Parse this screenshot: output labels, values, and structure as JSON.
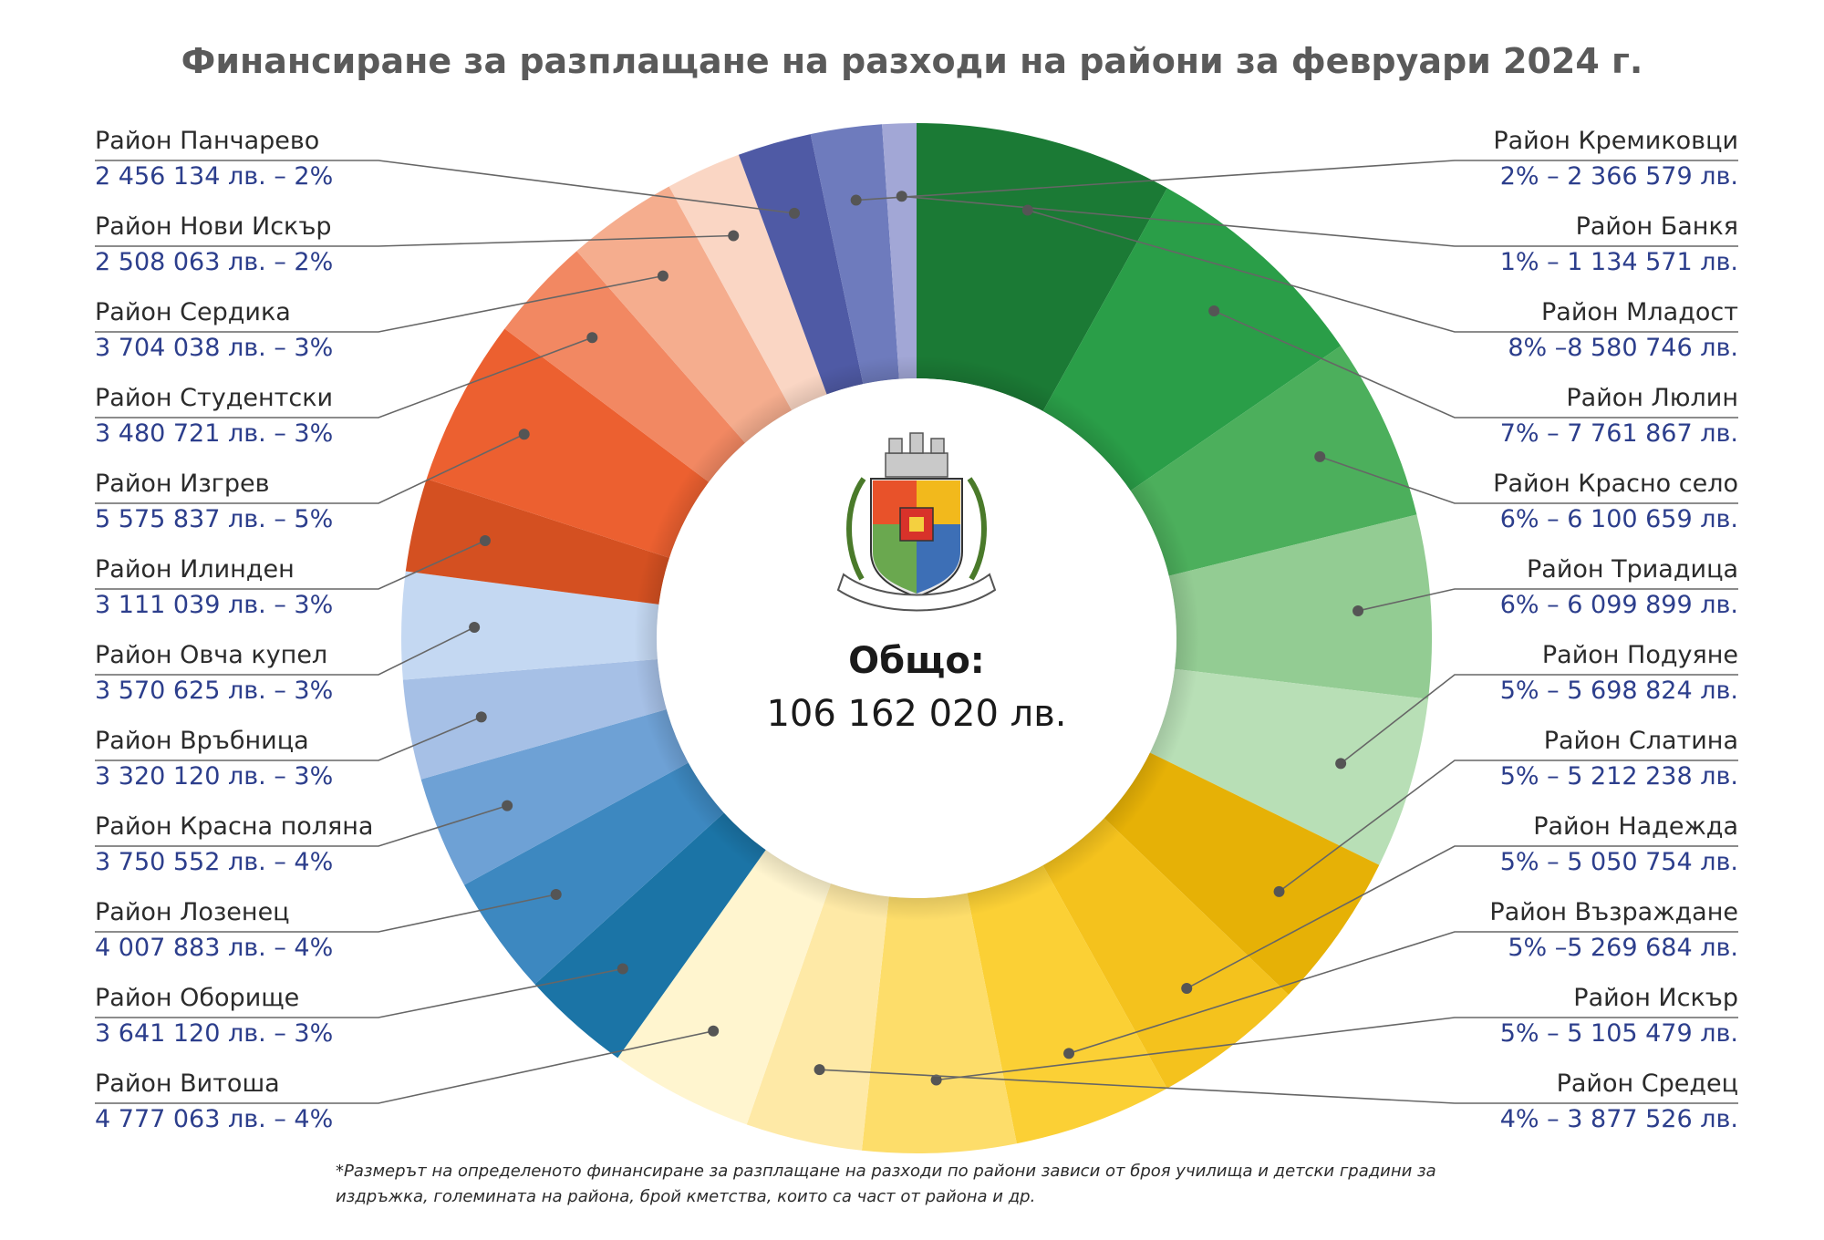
{
  "chart_data": {
    "type": "pie",
    "title": "Финансиране за разплащане на разходи на райони за февруари 2024 г.",
    "center_label": "Общо:",
    "center_value": "106 162 020 лв.",
    "footnote": [
      "*Размерът на определеното финансиране за разплащане на разходи по райони зависи от броя училища и детски градини за",
      "издръжка, големината на района, брой кметства, които са част от района и др."
    ],
    "slices": [
      {
        "name": "Район Младост",
        "value": 8580746,
        "label": "8% –8 580 746 лв.",
        "color": "#1b7a35"
      },
      {
        "name": "Район Люлин",
        "value": 7761867,
        "label": "7% – 7 761 867 лв.",
        "color": "#2a9e48"
      },
      {
        "name": "Район Красно село",
        "value": 6100659,
        "label": "6% – 6 100 659 лв.",
        "color": "#4caf5c"
      },
      {
        "name": "Район Триадица",
        "value": 6099899,
        "label": "6% – 6 099 899 лв.",
        "color": "#93cc93"
      },
      {
        "name": "Район Подуяне",
        "value": 5698824,
        "label": "5% – 5 698 824 лв.",
        "color": "#b8dfb6"
      },
      {
        "name": "Район Слатина",
        "value": 5212238,
        "label": "5% – 5 212 238 лв.",
        "color": "#e6b106"
      },
      {
        "name": "Район Надежда",
        "value": 5050754,
        "label": "5% – 5 050 754 лв.",
        "color": "#f4c21d"
      },
      {
        "name": "Район Възраждане",
        "value": 5269684,
        "label": "5% –5 269 684 лв.",
        "color": "#fbd035"
      },
      {
        "name": "Район Искър",
        "value": 5105479,
        "label": "5% – 5 105 479 лв.",
        "color": "#fddd6a"
      },
      {
        "name": "Район Средец",
        "value": 3877526,
        "label": "4% – 3 877 526 лв.",
        "color": "#fee9a6"
      },
      {
        "name": "Район Витоша",
        "value": 4777063,
        "label": "4 777 063 лв. – 4%",
        "color": "#fff5cf"
      },
      {
        "name": "Район Оборище",
        "value": 3641120,
        "label": "3 641 120 лв. – 3%",
        "color": "#1b74a6"
      },
      {
        "name": "Район Лозенец",
        "value": 4007883,
        "label": "4 007 883 лв. – 4%",
        "color": "#3d88c0"
      },
      {
        "name": "Район Красна поляна",
        "value": 3750552,
        "label": "3 750 552 лв. – 4%",
        "color": "#6ea1d5"
      },
      {
        "name": "Район Връбница",
        "value": 3320120,
        "label": "3 320 120 лв. – 3%",
        "color": "#a6c0e6"
      },
      {
        "name": "Район Овча купел",
        "value": 3570625,
        "label": "3 570 625 лв. – 3%",
        "color": "#c4d8f2"
      },
      {
        "name": "Район Илинден",
        "value": 3111039,
        "label": "3 111 039 лв. – 3%",
        "color": "#d45021"
      },
      {
        "name": "Район Изгрев",
        "value": 5575837,
        "label": "5 575 837 лв. – 5%",
        "color": "#ec6030"
      },
      {
        "name": "Район Студентски",
        "value": 3480721,
        "label": "3 480 721 лв. – 3%",
        "color": "#f28862"
      },
      {
        "name": "Район Сердика",
        "value": 3704038,
        "label": "3 704 038 лв. – 3%",
        "color": "#f5ad8e"
      },
      {
        "name": "Район Нови Искър",
        "value": 2508063,
        "label": "2 508 063 лв. – 2%",
        "color": "#fad6c4"
      },
      {
        "name": "Район Панчарево",
        "value": 2456134,
        "label": "2 456 134 лв. – 2%",
        "color": "#4f5aa5"
      },
      {
        "name": "Район Кремиковци",
        "value": 2366579,
        "label": "2% – 2 366 579 лв.",
        "color": "#6e7bbd"
      },
      {
        "name": "Район Банкя",
        "value": 1134571,
        "label": "1% – 1 134 571 лв.",
        "color": "#a2a7d6"
      }
    ],
    "right_labels": [
      {
        "name": "Район Кремиковци",
        "label": "2% – 2 366 579 лв."
      },
      {
        "name": "Район Банкя",
        "label": "1% – 1 134 571 лв."
      },
      {
        "name": "Район Младост",
        "label": "8% –8 580 746 лв."
      },
      {
        "name": "Район Люлин",
        "label": "7% – 7 761 867 лв."
      },
      {
        "name": "Район Красно село",
        "label": "6% – 6 100 659 лв."
      },
      {
        "name": "Район Триадица",
        "label": "6% – 6 099 899 лв."
      },
      {
        "name": "Район Подуяне",
        "label": "5% – 5 698 824 лв."
      },
      {
        "name": "Район Слатина",
        "label": "5% – 5 212 238 лв."
      },
      {
        "name": "Район Надежда",
        "label": "5% – 5 050 754 лв."
      },
      {
        "name": "Район Възраждане",
        "label": "5% –5 269 684 лв."
      },
      {
        "name": "Район Искър",
        "label": "5% – 5 105 479 лв."
      },
      {
        "name": "Район Средец",
        "label": "4% – 3 877 526 лв."
      }
    ],
    "left_labels": [
      {
        "name": "Район Панчарево",
        "label": "2 456 134 лв. – 2%"
      },
      {
        "name": "Район Нови Искър",
        "label": "2 508 063 лв. – 2%"
      },
      {
        "name": "Район Сердика",
        "label": "3 704 038 лв. – 3%"
      },
      {
        "name": "Район Студентски",
        "label": "3 480 721 лв. – 3%"
      },
      {
        "name": "Район Изгрев",
        "label": "5 575 837 лв. – 5%"
      },
      {
        "name": "Район Илинден",
        "label": "3 111 039 лв. – 3%"
      },
      {
        "name": "Район Овча купел",
        "label": "3 570 625 лв. – 3%"
      },
      {
        "name": "Район Връбница",
        "label": "3 320 120 лв. – 3%"
      },
      {
        "name": "Район Красна поляна",
        "label": "3 750 552 лв. – 4%"
      },
      {
        "name": "Район Лозенец",
        "label": "4 007 883 лв. – 4%"
      },
      {
        "name": "Район Оборище",
        "label": "3 641 120 лв. – 3%"
      },
      {
        "name": "Район Витоша",
        "label": "4 777 063 лв. – 4%"
      }
    ]
  }
}
